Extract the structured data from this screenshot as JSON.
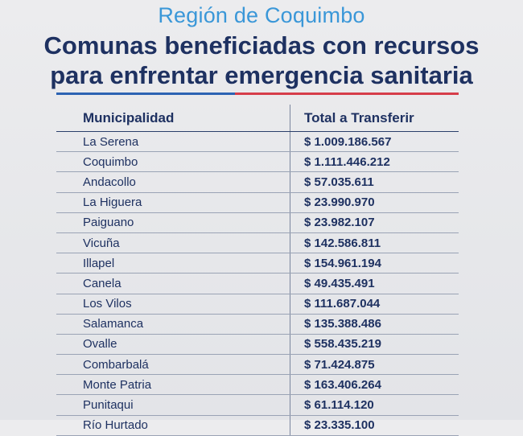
{
  "header": {
    "subtitle": "Región de Coquimbo",
    "title_line1": "Comunas beneficiadas con recursos",
    "title_line2": "para enfrentar emergencia sanitaria"
  },
  "table": {
    "columns": [
      "Municipalidad",
      "Total a Transferir"
    ],
    "rows": [
      {
        "municipality": "La Serena",
        "amount": "$ 1.009.186.567"
      },
      {
        "municipality": "Coquimbo",
        "amount": "$ 1.111.446.212"
      },
      {
        "municipality": "Andacollo",
        "amount": "$ 57.035.611"
      },
      {
        "municipality": "La Higuera",
        "amount": "$ 23.990.970"
      },
      {
        "municipality": "Paiguano",
        "amount": "$ 23.982.107"
      },
      {
        "municipality": "Vicuña",
        "amount": "$ 142.586.811"
      },
      {
        "municipality": "Illapel",
        "amount": "$ 154.961.194"
      },
      {
        "municipality": "Canela",
        "amount": "$ 49.435.491"
      },
      {
        "municipality": "Los Vilos",
        "amount": "$ 111.687.044"
      },
      {
        "municipality": "Salamanca",
        "amount": "$ 135.388.486"
      },
      {
        "municipality": "Ovalle",
        "amount": "$ 558.435.219"
      },
      {
        "municipality": "Combarbalá",
        "amount": "$ 71.424.875"
      },
      {
        "municipality": "Monte Patria",
        "amount": "$ 163.406.264"
      },
      {
        "municipality": "Punitaqui",
        "amount": "$ 61.114.120"
      },
      {
        "municipality": "Río Hurtado",
        "amount": "$ 23.335.100"
      }
    ]
  },
  "colors": {
    "subtitle": "#3a97d8",
    "title": "#1e3161",
    "rule_blue": "#2d63b3",
    "rule_red": "#d63d4a"
  }
}
